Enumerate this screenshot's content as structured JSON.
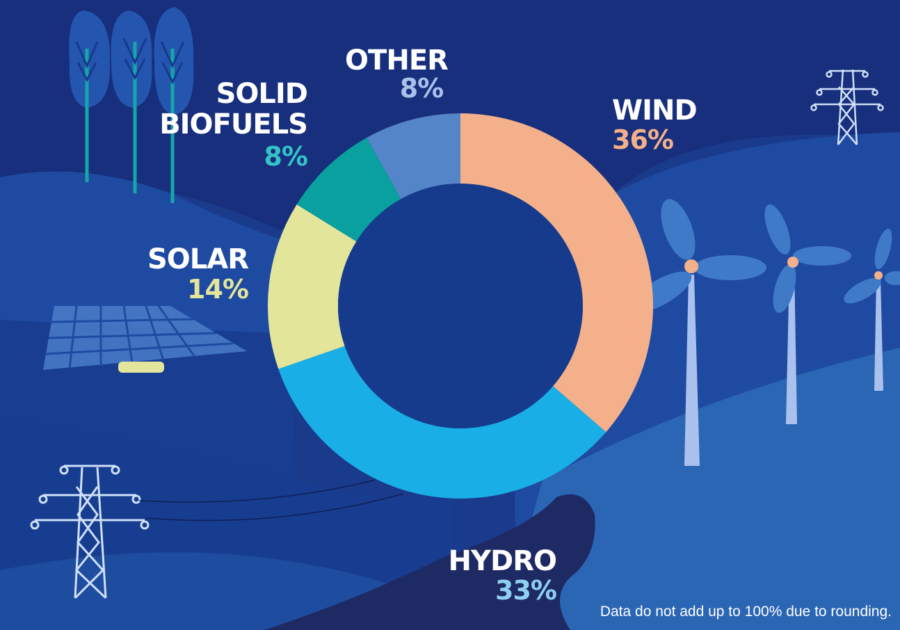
{
  "chart_data": {
    "type": "pie",
    "donut": true,
    "title": "",
    "slices": [
      {
        "label": "WIND",
        "value": 36,
        "display": "36%",
        "color": "#f4b08a",
        "label_color": "#f4b08a"
      },
      {
        "label": "HYDRO",
        "value": 33,
        "display": "33%",
        "color": "#19aee6",
        "label_color": "#8fd0f2"
      },
      {
        "label": "SOLAR",
        "value": 14,
        "display": "14%",
        "color": "#e3e59b",
        "label_color": "#e3e59b"
      },
      {
        "label": "SOLID BIOFUELS",
        "label_lines": [
          "SOLID",
          "BIOFUELS"
        ],
        "value": 8,
        "display": "8%",
        "color": "#0aa0a0",
        "label_color": "#35c3c8"
      },
      {
        "label": "OTHER",
        "value": 8,
        "display": "8%",
        "color": "#5585c9",
        "label_color": "#a9c1ec"
      }
    ],
    "start": "top, clockwise"
  },
  "footnote": "Data do not add up to 100% due to rounding.",
  "colors": {
    "background": "#1a3a8c",
    "donut_hole": "#163a8c",
    "hill_dark": "#112a6e",
    "hill_light": "#2b66b4",
    "river": "#1e2a63",
    "icons": "#cfe0f8"
  },
  "decor": {
    "icons": [
      "trees-icon",
      "power-tower-icon",
      "solar-panel-icon",
      "wind-turbine-icon",
      "river-icon"
    ]
  }
}
